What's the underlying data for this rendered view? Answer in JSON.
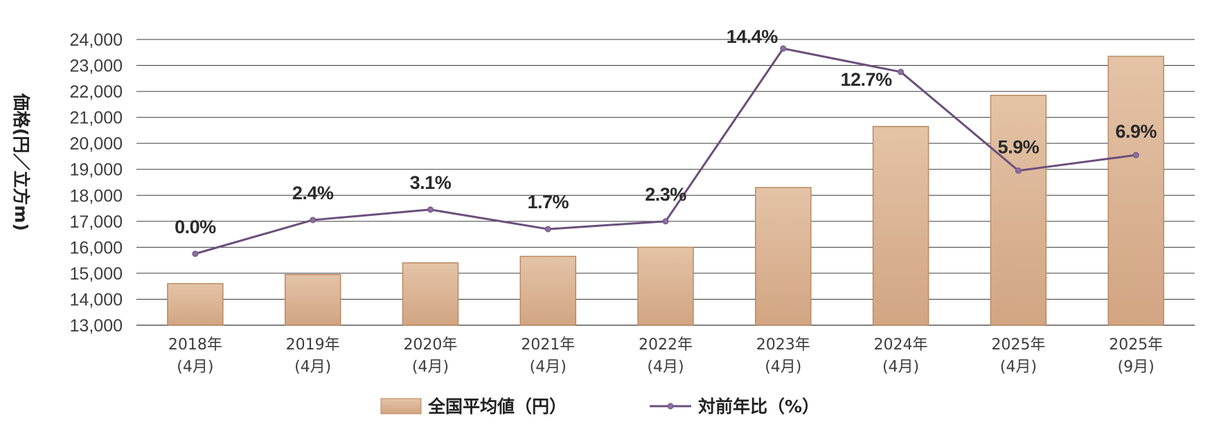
{
  "chart_data": {
    "type": "bar",
    "categories": [
      [
        "2018年",
        "(4月)"
      ],
      [
        "2019年",
        "(4月)"
      ],
      [
        "2020年",
        "(4月)"
      ],
      [
        "2021年",
        "(4月)"
      ],
      [
        "2022年",
        "(4月)"
      ],
      [
        "2023年",
        "(4月)"
      ],
      [
        "2024年",
        "(4月)"
      ],
      [
        "2025年",
        "(4月)"
      ],
      [
        "2025年",
        "(9月)"
      ]
    ],
    "ylabel": "価格(円／立方m)",
    "ylim": [
      13000,
      24000
    ],
    "yticks": [
      "13,000",
      "14,000",
      "15,000",
      "16,000",
      "17,000",
      "18,000",
      "19,000",
      "20,000",
      "21,000",
      "22,000",
      "23,000",
      "24,000"
    ],
    "grid": true,
    "legend_position": "bottom",
    "series": [
      {
        "name": "全国平均値（円）",
        "type": "bar",
        "color": "#d9b08f",
        "values": [
          14600,
          14950,
          15400,
          15650,
          16000,
          18300,
          20650,
          21850,
          23350
        ]
      },
      {
        "name": "対前年比（%）",
        "type": "line",
        "color": "#6b4f7b",
        "values": [
          0.0,
          2.4,
          3.1,
          1.7,
          2.3,
          14.4,
          12.7,
          5.9,
          6.9
        ],
        "labels": [
          "0.0%",
          "2.4%",
          "3.1%",
          "1.7%",
          "2.3%",
          "14.4%",
          "12.7%",
          "5.9%",
          "6.9%"
        ],
        "plotted_positions": [
          15750,
          17050,
          17450,
          16700,
          17000,
          23650,
          22750,
          18950,
          19550
        ]
      }
    ]
  }
}
